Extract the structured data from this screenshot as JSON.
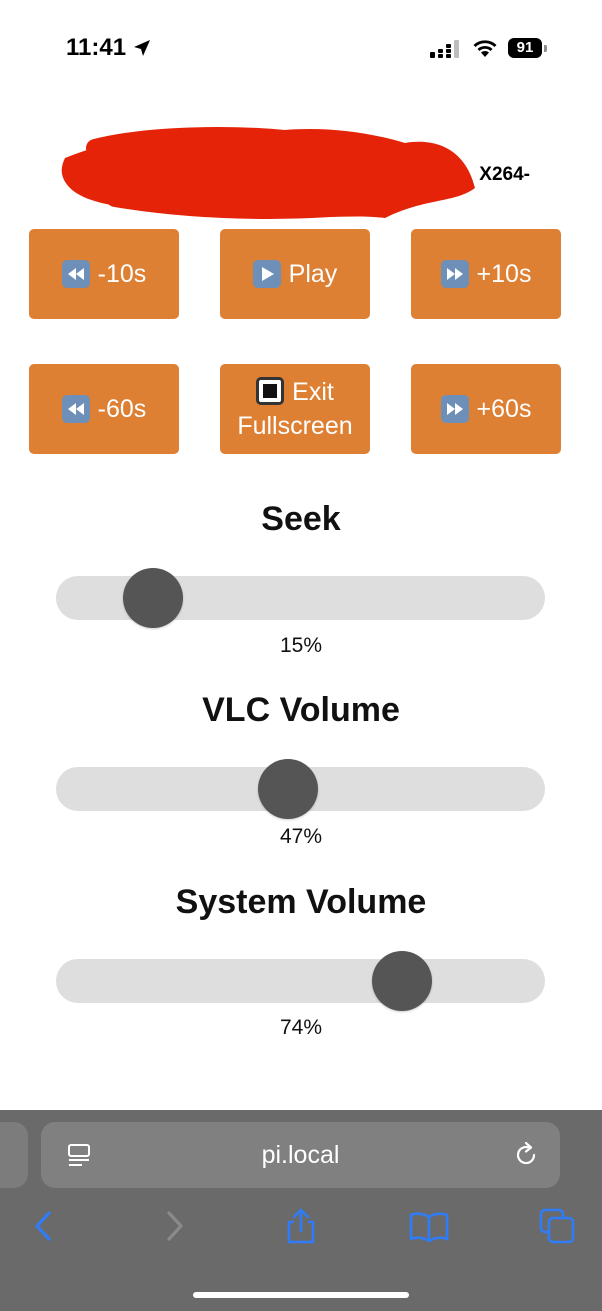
{
  "status_bar": {
    "time": "11:41",
    "battery": "91",
    "icons": [
      "location-arrow-icon",
      "signal-icon",
      "wifi-icon",
      "battery-icon"
    ]
  },
  "media": {
    "title_visible_fragment": "X264-"
  },
  "controls": {
    "row1": [
      {
        "icon": "rewind-icon",
        "label": "-10s"
      },
      {
        "icon": "play-icon",
        "label": "Play"
      },
      {
        "icon": "fast-forward-icon",
        "label": "+10s"
      }
    ],
    "row2": [
      {
        "icon": "rewind-icon",
        "label": "-60s"
      },
      {
        "icon": "stop-icon",
        "label_line1": "Exit",
        "label_line2": "Fullscreen"
      },
      {
        "icon": "fast-forward-icon",
        "label": "+60s"
      }
    ]
  },
  "sliders": {
    "seek": {
      "title": "Seek",
      "value_text": "15%",
      "value": 15
    },
    "vlc_volume": {
      "title": "VLC Volume",
      "value_text": "47%",
      "value": 47
    },
    "system_volume": {
      "title": "System Volume",
      "value_text": "74%",
      "value": 74
    }
  },
  "browser": {
    "url": "pi.local",
    "icons": [
      "reader-icon",
      "reload-icon",
      "back-icon",
      "forward-icon",
      "share-icon",
      "bookmarks-icon",
      "tabs-icon"
    ]
  },
  "colors": {
    "button": "#dd8034",
    "thumb": "#555555",
    "track": "#dedede",
    "safari_accent": "#2f7cf6",
    "redaction": "#e42308"
  }
}
